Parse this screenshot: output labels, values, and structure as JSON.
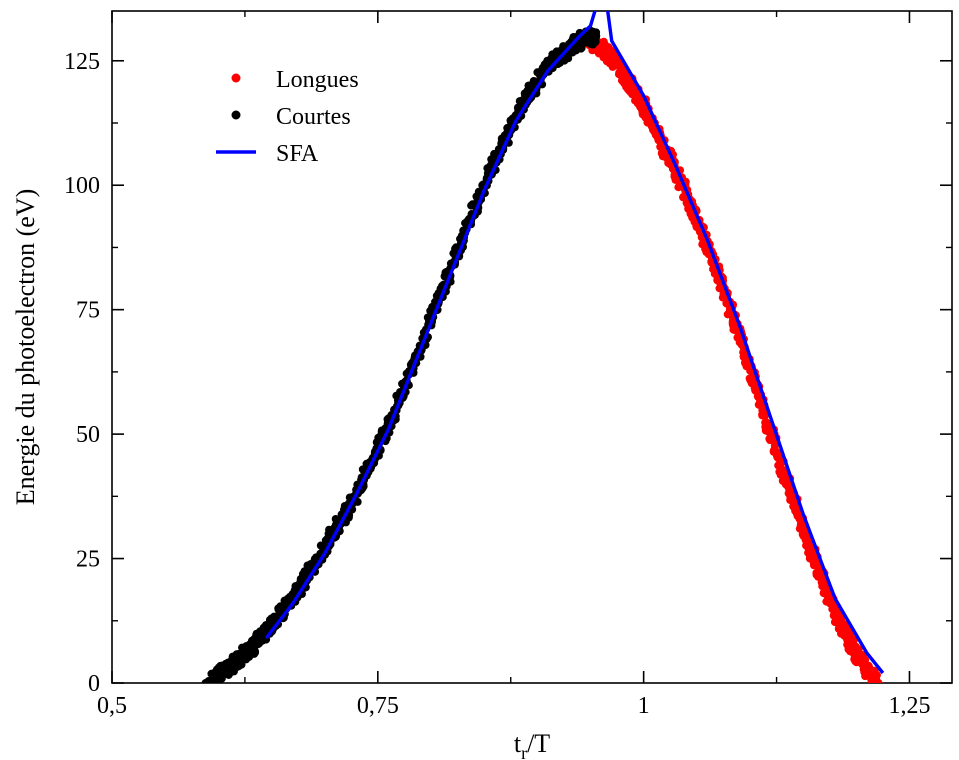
{
  "chart_data": {
    "type": "scatter",
    "xlabel_main": "t",
    "xlabel_sub": "r",
    "xlabel_rest": "/T",
    "ylabel": "Energie du photoelectron (eV)",
    "xlim": [
      0.5,
      1.29
    ],
    "ylim": [
      0,
      135
    ],
    "grid": false,
    "legend_position": "top-left",
    "x_ticks": [
      {
        "value": 0.5,
        "label": "0,5"
      },
      {
        "value": 0.75,
        "label": "0,75"
      },
      {
        "value": 1.0,
        "label": "1"
      },
      {
        "value": 1.25,
        "label": "1,25"
      }
    ],
    "y_ticks": [
      {
        "value": 0,
        "label": "0"
      },
      {
        "value": 25,
        "label": "25"
      },
      {
        "value": 50,
        "label": "50"
      },
      {
        "value": 75,
        "label": "75"
      },
      {
        "value": 100,
        "label": "100"
      },
      {
        "value": 125,
        "label": "125"
      }
    ],
    "series": [
      {
        "name": "Longues",
        "kind": "points",
        "color": "#ff0000",
        "x": [
          0.95,
          0.97,
          1.0,
          1.03,
          1.06,
          1.09,
          1.12,
          1.15,
          1.18,
          1.2,
          1.22
        ],
        "y": [
          129,
          126,
          116,
          103,
          88,
          70,
          50,
          31,
          14,
          6,
          0
        ]
      },
      {
        "name": "Courtes",
        "kind": "points",
        "color": "#000000",
        "x": [
          0.59,
          0.61,
          0.64,
          0.67,
          0.7,
          0.73,
          0.76,
          0.79,
          0.82,
          0.85,
          0.88,
          0.91,
          0.94,
          0.955
        ],
        "y": [
          0,
          3,
          9,
          17,
          27,
          38,
          52,
          67,
          84,
          100,
          114,
          124,
          129,
          130
        ]
      },
      {
        "name": "SFA",
        "kind": "line",
        "color": "#0000ff",
        "x": [
          0.645,
          0.67,
          0.7,
          0.73,
          0.76,
          0.79,
          0.82,
          0.85,
          0.88,
          0.91,
          0.94,
          0.95,
          0.957,
          0.965,
          0.97,
          1.0,
          1.03,
          1.06,
          1.09,
          1.12,
          1.15,
          1.18,
          1.21,
          1.225
        ],
        "y": [
          9,
          16,
          26,
          38,
          51,
          67,
          83,
          99,
          113,
          123,
          130,
          132,
          137,
          137,
          129,
          118,
          104,
          89,
          72,
          53,
          34,
          17,
          6,
          2
        ]
      }
    ]
  }
}
